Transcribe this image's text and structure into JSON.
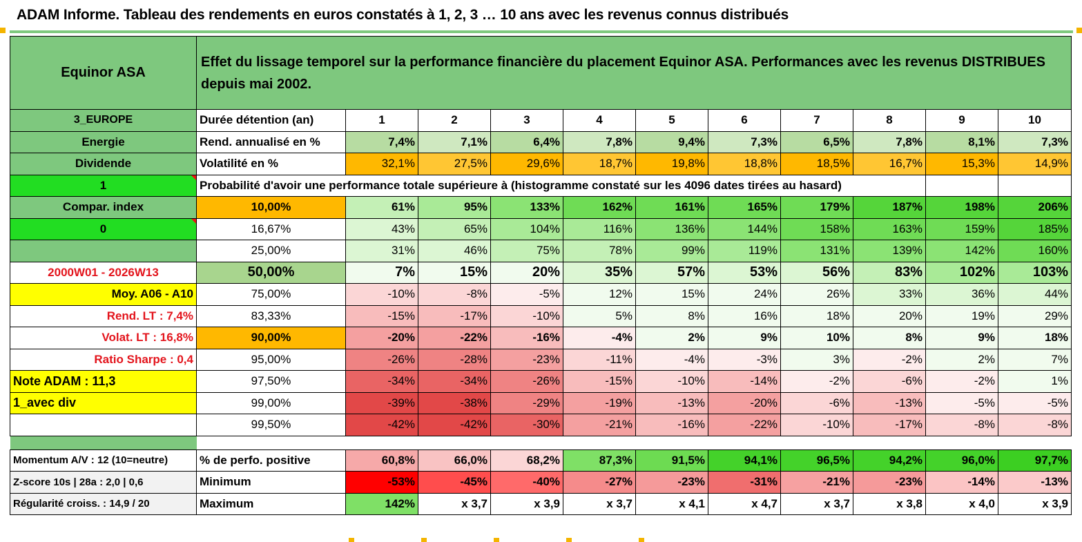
{
  "page": {
    "title": "ADAM Informe. Tableau des rendements en euros constatés à 1, 2, 3 … 10 ans avec les revenus connus distribués"
  },
  "colors": {
    "header_green": "#7ec87e",
    "bright_green": "#22dd22",
    "orange": "#ffb800",
    "yellow": "#ffff00",
    "red_text": "#e3141c"
  },
  "header": {
    "name": "Equinor ASA",
    "description": "Effet du lissage temporel sur la performance financière du placement Equinor ASA. Performances avec les revenus DISTRIBUES depuis mai 2002."
  },
  "years": [
    "1",
    "2",
    "3",
    "4",
    "5",
    "6",
    "7",
    "8",
    "9",
    "10"
  ],
  "durations_label": "Durée détention (an)",
  "side": {
    "region": "3_EUROPE",
    "sector": "Energie",
    "type": "Dividende",
    "flag1": "1",
    "compar": "Compar. index",
    "flag0": "0",
    "period": "2000W01 - 2026W13",
    "moy": "Moy. A06 - A10",
    "rend_lt": "Rend. LT :   7,4%",
    "volat_lt": "Volat. LT :   16,8%",
    "sharpe": "Ratio Sharpe :    0,4",
    "note": "Note ADAM : 11,3",
    "avec_div": "1_avec div"
  },
  "rend": {
    "label": "Rend. annualisé en %",
    "values": [
      "7,4%",
      "7,1%",
      "6,4%",
      "7,8%",
      "9,4%",
      "7,3%",
      "6,5%",
      "7,8%",
      "8,1%",
      "7,3%"
    ]
  },
  "vol": {
    "label": "Volatilité en %",
    "values": [
      "32,1%",
      "27,5%",
      "29,6%",
      "18,7%",
      "19,8%",
      "18,8%",
      "18,5%",
      "16,7%",
      "15,3%",
      "14,9%"
    ]
  },
  "proba_title": "Probabilité d'avoir une performance totale supérieure à (histogramme constaté sur les 4096 dates tirées au hasard)",
  "quantiles": [
    {
      "p": "10,00%",
      "values": [
        "61%",
        "95%",
        "133%",
        "162%",
        "161%",
        "165%",
        "179%",
        "187%",
        "198%",
        "206%"
      ]
    },
    {
      "p": "16,67%",
      "values": [
        "43%",
        "65%",
        "104%",
        "116%",
        "136%",
        "144%",
        "158%",
        "163%",
        "159%",
        "185%"
      ]
    },
    {
      "p": "25,00%",
      "values": [
        "31%",
        "46%",
        "75%",
        "78%",
        "99%",
        "119%",
        "131%",
        "139%",
        "142%",
        "160%"
      ]
    },
    {
      "p": "50,00%",
      "values": [
        "7%",
        "15%",
        "20%",
        "35%",
        "57%",
        "53%",
        "56%",
        "83%",
        "102%",
        "103%"
      ]
    },
    {
      "p": "75,00%",
      "values": [
        "-10%",
        "-8%",
        "-5%",
        "12%",
        "15%",
        "24%",
        "26%",
        "33%",
        "36%",
        "44%"
      ]
    },
    {
      "p": "83,33%",
      "values": [
        "-15%",
        "-17%",
        "-10%",
        "5%",
        "8%",
        "16%",
        "18%",
        "20%",
        "19%",
        "29%"
      ]
    },
    {
      "p": "90,00%",
      "values": [
        "-20%",
        "-22%",
        "-16%",
        "-4%",
        "2%",
        "9%",
        "10%",
        "8%",
        "9%",
        "18%"
      ]
    },
    {
      "p": "95,00%",
      "values": [
        "-26%",
        "-28%",
        "-23%",
        "-11%",
        "-4%",
        "-3%",
        "3%",
        "-2%",
        "2%",
        "7%"
      ]
    },
    {
      "p": "97,50%",
      "values": [
        "-34%",
        "-34%",
        "-26%",
        "-15%",
        "-10%",
        "-14%",
        "-2%",
        "-6%",
        "-2%",
        "1%"
      ]
    },
    {
      "p": "99,00%",
      "values": [
        "-39%",
        "-38%",
        "-29%",
        "-19%",
        "-13%",
        "-20%",
        "-6%",
        "-13%",
        "-5%",
        "-5%"
      ]
    },
    {
      "p": "99,50%",
      "values": [
        "-42%",
        "-42%",
        "-30%",
        "-21%",
        "-16%",
        "-22%",
        "-10%",
        "-17%",
        "-8%",
        "-8%"
      ]
    }
  ],
  "bottom": {
    "momentum": "Momentum A/V : 12 (10=neutre)",
    "zscore": "Z-score 10s | 28a : 2,0 | 0,6",
    "regularite": "Régularité croiss. : 14,9 / 20",
    "positive_label": "% de perfo. positive",
    "positive": [
      "60,8%",
      "66,0%",
      "68,2%",
      "87,3%",
      "91,5%",
      "94,1%",
      "96,5%",
      "94,2%",
      "96,0%",
      "97,7%"
    ],
    "min_label": "Minimum",
    "min": [
      "-53%",
      "-45%",
      "-40%",
      "-27%",
      "-23%",
      "-31%",
      "-21%",
      "-23%",
      "-14%",
      "-13%"
    ],
    "max_label": "Maximum",
    "max": [
      "142%",
      "x 3,7",
      "x 3,9",
      "x 3,7",
      "x 4,1",
      "x 4,7",
      "x 3,7",
      "x 3,8",
      "x 4,0",
      "x 3,9"
    ]
  }
}
